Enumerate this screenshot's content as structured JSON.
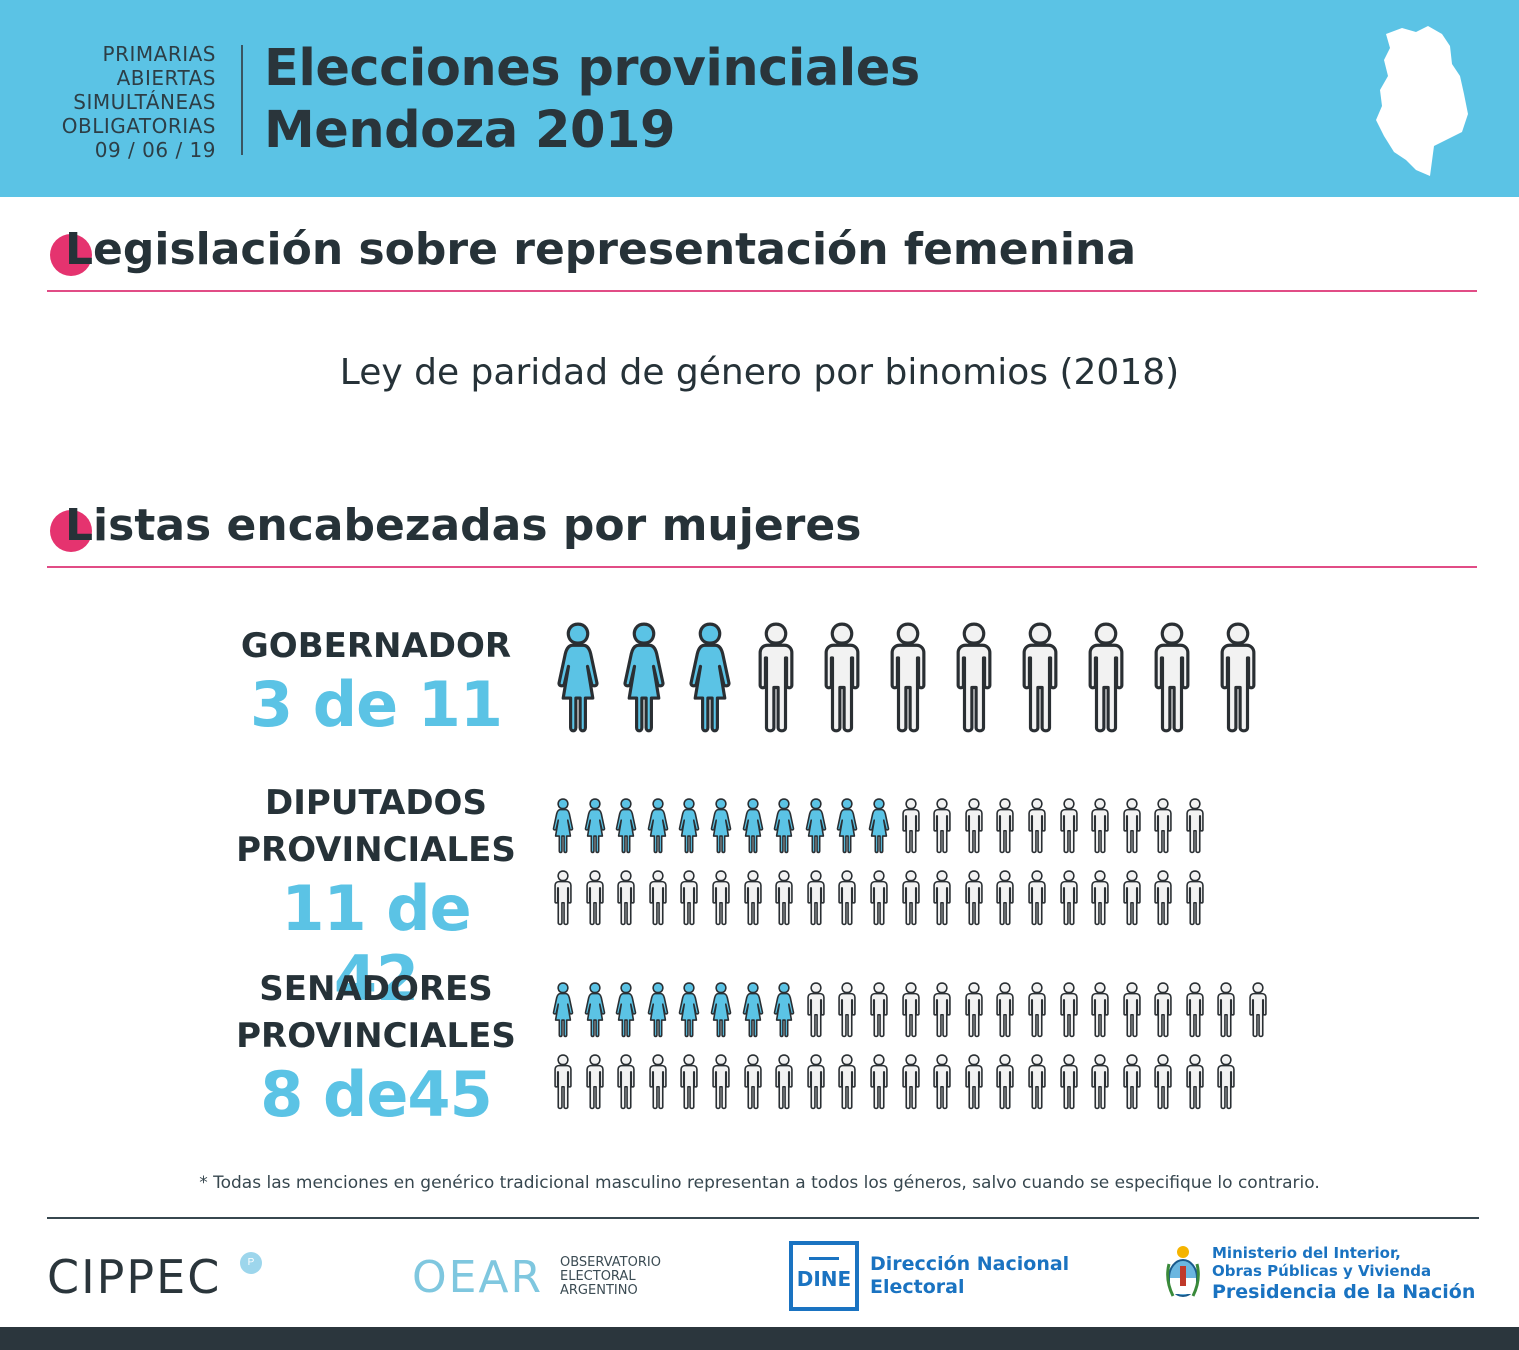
{
  "header": {
    "paso_lines": [
      "PRIMARIAS",
      "ABIERTAS",
      "SIMULTÁNEAS",
      "OBLIGATORIAS",
      "09 / 06 / 19"
    ],
    "title_line1": "Elecciones provinciales",
    "title_line2": "Mendoza 2019"
  },
  "section1": {
    "initial": "L",
    "rest": "egislación sobre representación femenina",
    "law": "Ley de paridad de género por binomios (2018)"
  },
  "section2": {
    "initial": "L",
    "rest": "istas encabezadas por mujeres"
  },
  "rows": [
    {
      "name_lines": [
        "GOBERNADOR"
      ],
      "count": "3 de 11",
      "women": 3,
      "total": 11,
      "per_line": 11
    },
    {
      "name_lines": [
        "DIPUTADOS",
        "PROVINCIALES"
      ],
      "count": "11 de 42",
      "women": 11,
      "total": 42,
      "per_line": 21
    },
    {
      "name_lines": [
        "SENADORES",
        "PROVINCIALES"
      ],
      "count": "8 de45",
      "women": 8,
      "total": 45,
      "per_line": 23
    }
  ],
  "footnote": "* Todas las menciones en genérico tradicional masculino representan a todos los géneros, salvo cuando se especifique lo contrario.",
  "logos": {
    "cippec": "CIPPEC",
    "oear": "OEAR",
    "oear_sub": [
      "OBSERVATORIO",
      "ELECTORAL",
      "ARGENTINO"
    ],
    "dine": "DINE",
    "dine_name": [
      "Dirección Nacional",
      "Electoral"
    ],
    "ministry": [
      "Ministerio del Interior,",
      "Obras Públicas y Vivienda"
    ],
    "presidency": "Presidencia de la Nación"
  },
  "colors": {
    "header": "#5bc3e5",
    "accent": "#e5336f",
    "women": "#5bc3e5",
    "men": "#f2f2f2",
    "outline": "#2a2f33"
  }
}
